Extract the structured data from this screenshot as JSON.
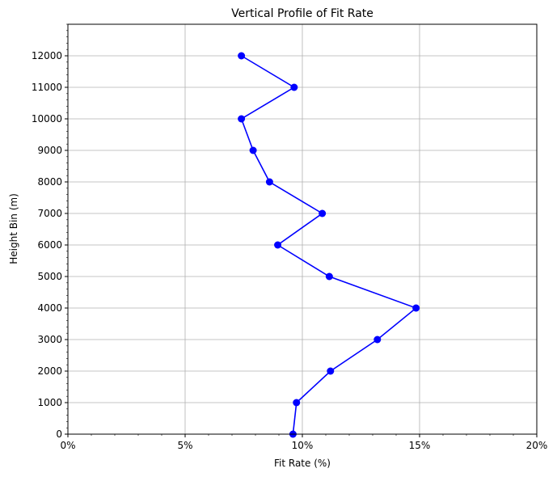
{
  "chart_data": {
    "type": "line",
    "title": "Vertical Profile of Fit Rate",
    "xlabel": "Fit Rate (%)",
    "ylabel": "Height Bin (m)",
    "xlim": [
      0,
      20
    ],
    "ylim": [
      0,
      13000
    ],
    "x_ticks": [
      0,
      5,
      10,
      15,
      20
    ],
    "x_tick_labels": [
      "0%",
      "5%",
      "10%",
      "15%",
      "20%"
    ],
    "y_ticks": [
      0,
      1000,
      2000,
      3000,
      4000,
      5000,
      6000,
      7000,
      8000,
      9000,
      10000,
      11000,
      12000
    ],
    "y_tick_labels": [
      "0",
      "1000",
      "2000",
      "3000",
      "4000",
      "5000",
      "6000",
      "7000",
      "8000",
      "9000",
      "10000",
      "11000",
      "12000"
    ],
    "grid": true,
    "series": [
      {
        "color": "#0000ff",
        "marker": "circle",
        "points": [
          {
            "x": 9.6,
            "y": 0
          },
          {
            "x": 9.75,
            "y": 1000
          },
          {
            "x": 11.2,
            "y": 2000
          },
          {
            "x": 13.2,
            "y": 3000
          },
          {
            "x": 14.85,
            "y": 4000
          },
          {
            "x": 11.15,
            "y": 5000
          },
          {
            "x": 8.95,
            "y": 6000
          },
          {
            "x": 10.85,
            "y": 7000
          },
          {
            "x": 8.6,
            "y": 8000
          },
          {
            "x": 7.9,
            "y": 9000
          },
          {
            "x": 7.4,
            "y": 10000
          },
          {
            "x": 9.65,
            "y": 11000
          },
          {
            "x": 7.4,
            "y": 12000
          }
        ]
      }
    ]
  }
}
